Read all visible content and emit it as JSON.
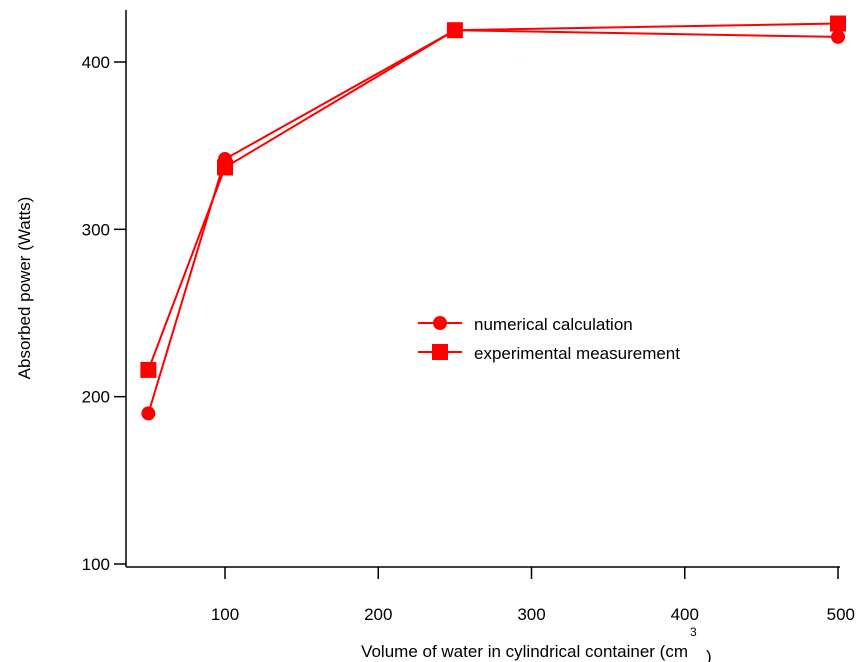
{
  "chart_data": {
    "type": "line",
    "title": "",
    "xlabel": "Volume of water in cylindrical container (cm",
    "xlabel_superscript": "3",
    "xlabel_suffix": ")",
    "ylabel": "Absorbed power (Watts)",
    "xlim": [
      40,
      500
    ],
    "ylim": [
      100,
      430
    ],
    "x_ticks": [
      100,
      200,
      300,
      400,
      500
    ],
    "y_ticks": [
      100,
      200,
      300,
      400
    ],
    "grid": false,
    "legend_position": "center-right",
    "series": [
      {
        "name": "numerical calculation",
        "marker": "circle",
        "color": "#ff0000",
        "points": [
          {
            "x": 50,
            "y": 190
          },
          {
            "x": 100,
            "y": 342
          },
          {
            "x": 250,
            "y": 419
          },
          {
            "x": 500,
            "y": 415
          }
        ]
      },
      {
        "name": "experimental measurement",
        "marker": "square",
        "color": "#ff0000",
        "points": [
          {
            "x": 50,
            "y": 216
          },
          {
            "x": 100,
            "y": 337
          },
          {
            "x": 250,
            "y": 419
          },
          {
            "x": 500,
            "y": 423
          }
        ]
      }
    ]
  }
}
